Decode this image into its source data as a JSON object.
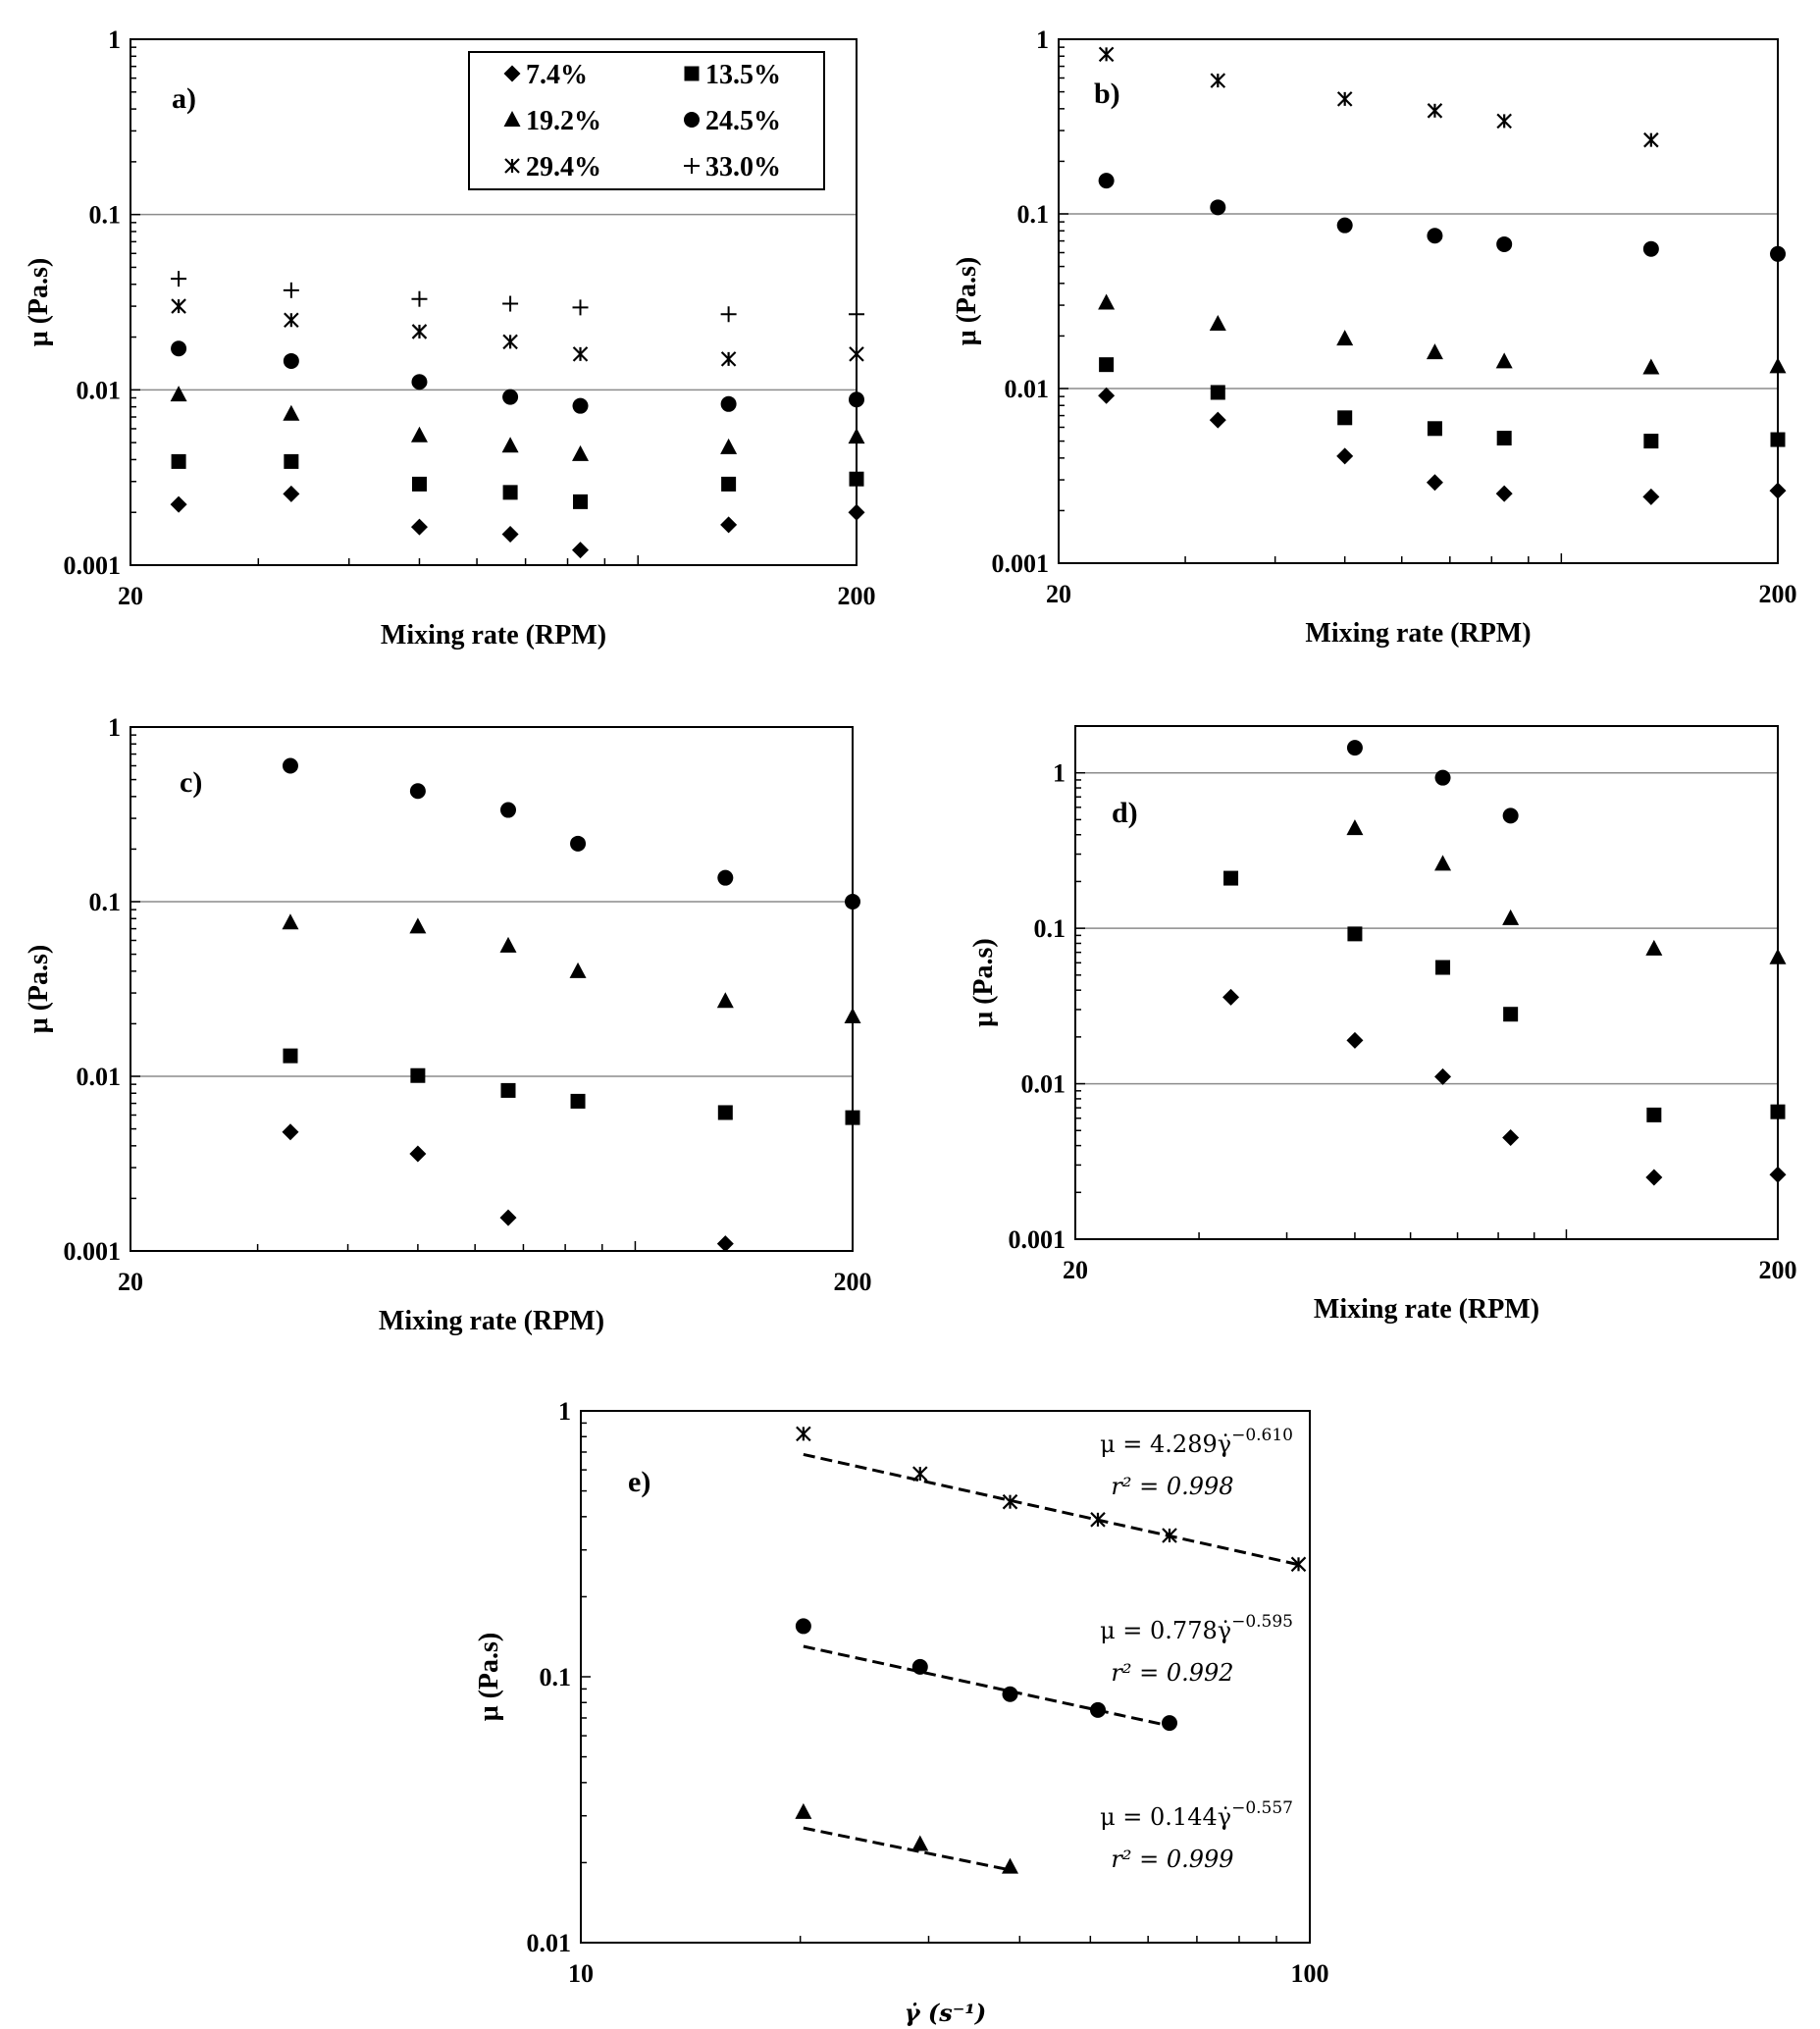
{
  "legend": [
    {
      "marker": "diamond",
      "label": "7.4%"
    },
    {
      "marker": "square",
      "label": "13.5%"
    },
    {
      "marker": "triangle",
      "label": "19.2%"
    },
    {
      "marker": "circle",
      "label": "24.5%"
    },
    {
      "marker": "star",
      "label": "29.4%"
    },
    {
      "marker": "plus",
      "label": "33.0%"
    }
  ],
  "chart_data": [
    {
      "id": "a",
      "type": "scatter",
      "panel_label": "a)",
      "xlabel": "Mixing rate (RPM)",
      "ylabel": "μ (Pa.s)",
      "xscale": "log",
      "yscale": "log",
      "xlim": [
        20,
        200
      ],
      "ylim": [
        0.001,
        1
      ],
      "xticks": [
        "20",
        "200"
      ],
      "yticks": [
        "0.001",
        "0.01",
        "0.1",
        "1"
      ],
      "grid": "horizontal major",
      "legend_position": "top-right",
      "x": [
        23.3,
        33.3,
        50,
        66.7,
        83.3,
        133.3,
        200
      ],
      "series": [
        {
          "name": "7.4%",
          "marker": "diamond",
          "values": [
            0.00222,
            0.00255,
            0.00165,
            0.0015,
            0.00122,
            0.0017,
            0.002
          ]
        },
        {
          "name": "13.5%",
          "marker": "square",
          "values": [
            0.0039,
            0.0039,
            0.0029,
            0.0026,
            0.0023,
            0.0029,
            0.0031
          ]
        },
        {
          "name": "19.2%",
          "marker": "triangle",
          "values": [
            0.0094,
            0.0073,
            0.0055,
            0.0048,
            0.0043,
            0.0047,
            0.0054
          ]
        },
        {
          "name": "24.5%",
          "marker": "circle",
          "values": [
            0.0172,
            0.0146,
            0.0111,
            0.0091,
            0.0081,
            0.0083,
            0.0088
          ]
        },
        {
          "name": "29.4%",
          "marker": "star",
          "values": [
            0.03,
            0.025,
            0.0215,
            0.0188,
            0.016,
            0.015,
            0.016
          ]
        },
        {
          "name": "33.0%",
          "marker": "plus",
          "values": [
            0.043,
            0.037,
            0.033,
            0.031,
            0.0295,
            0.027,
            0.027
          ]
        }
      ]
    },
    {
      "id": "b",
      "type": "scatter",
      "panel_label": "b)",
      "xlabel": "Mixing rate (RPM)",
      "ylabel": "μ (Pa.s)",
      "xscale": "log",
      "yscale": "log",
      "xlim": [
        20,
        200
      ],
      "ylim": [
        0.001,
        1
      ],
      "xticks": [
        "20",
        "200"
      ],
      "yticks": [
        "0.001",
        "0.01",
        "0.1",
        "1"
      ],
      "grid": "horizontal major",
      "x": [
        23.3,
        33.3,
        50,
        66.7,
        83.3,
        133.3,
        200
      ],
      "series": [
        {
          "name": "7.4%",
          "marker": "diamond",
          "values": [
            0.0091,
            0.0066,
            0.0041,
            0.0029,
            0.0025,
            0.0024,
            0.0026
          ]
        },
        {
          "name": "13.5%",
          "marker": "square",
          "values": [
            0.0137,
            0.0095,
            0.0068,
            0.0059,
            0.0052,
            0.005,
            0.0051
          ]
        },
        {
          "name": "19.2%",
          "marker": "triangle",
          "values": [
            0.031,
            0.0235,
            0.0193,
            0.0161,
            0.0143,
            0.0132,
            0.0134
          ]
        },
        {
          "name": "24.5%",
          "marker": "circle",
          "values": [
            0.155,
            0.109,
            0.086,
            0.075,
            0.067,
            0.063,
            0.059
          ]
        },
        {
          "name": "29.4%",
          "marker": "star",
          "values": [
            0.82,
            0.58,
            0.455,
            0.39,
            0.34,
            0.265,
            null
          ]
        }
      ]
    },
    {
      "id": "c",
      "type": "scatter",
      "panel_label": "c)",
      "xlabel": "Mixing rate (RPM)",
      "ylabel": "μ (Pa.s)",
      "xscale": "log",
      "yscale": "log",
      "xlim": [
        20,
        200
      ],
      "ylim": [
        0.001,
        1
      ],
      "xticks": [
        "20",
        "200"
      ],
      "yticks": [
        "0.001",
        "0.01",
        "0.1",
        "1"
      ],
      "grid": "horizontal major",
      "x": [
        33.3,
        50,
        66.7,
        83.3,
        133.3,
        200
      ],
      "series": [
        {
          "name": "7.4%",
          "marker": "diamond",
          "values": [
            0.0048,
            0.0036,
            0.00155,
            null,
            0.0011,
            null
          ]
        },
        {
          "name": "13.5%",
          "marker": "square",
          "values": [
            0.0131,
            0.0101,
            0.0083,
            0.0072,
            0.0062,
            0.0058
          ]
        },
        {
          "name": "19.2%",
          "marker": "triangle",
          "values": [
            0.076,
            0.072,
            0.056,
            0.04,
            0.027,
            0.022
          ]
        },
        {
          "name": "24.5%",
          "marker": "circle",
          "values": [
            0.6,
            0.43,
            0.335,
            0.215,
            0.137,
            0.1
          ]
        }
      ]
    },
    {
      "id": "d",
      "type": "scatter",
      "panel_label": "d)",
      "xlabel": "Mixing rate (RPM)",
      "ylabel": "μ (Pa.s)",
      "xscale": "log",
      "yscale": "log",
      "xlim": [
        20,
        200
      ],
      "ylim": [
        0.001,
        2
      ],
      "xticks": [
        "20",
        "200"
      ],
      "yticks": [
        "0.001",
        "0.01",
        "0.1",
        "1"
      ],
      "grid": "horizontal major",
      "x": [
        33.3,
        50,
        66.7,
        83.3,
        133.3,
        200
      ],
      "series": [
        {
          "name": "7.4%",
          "marker": "diamond",
          "values": [
            0.036,
            0.019,
            0.0111,
            0.0045,
            0.0025,
            0.0026
          ]
        },
        {
          "name": "13.5%",
          "marker": "square",
          "values": [
            0.21,
            0.092,
            0.056,
            0.028,
            0.0063,
            0.0066
          ]
        },
        {
          "name": "19.2%",
          "marker": "triangle",
          "values": [
            null,
            0.44,
            0.26,
            0.116,
            0.074,
            0.065
          ]
        },
        {
          "name": "24.5%",
          "marker": "circle",
          "values": [
            null,
            1.45,
            0.93,
            0.53,
            null,
            null
          ]
        }
      ]
    },
    {
      "id": "e",
      "type": "scatter",
      "panel_label": "e)",
      "xlabel": "γ̇ (s⁻¹)",
      "ylabel": "μ (Pa.s)",
      "xscale": "log",
      "yscale": "log",
      "xlim": [
        10,
        100
      ],
      "ylim": [
        0.01,
        1
      ],
      "xticks": [
        "10",
        "100"
      ],
      "yticks": [
        "0.01",
        "0.1",
        "1"
      ],
      "grid": "none",
      "series": [
        {
          "name": "29.4%",
          "marker": "star",
          "x": [
            20.2,
            29.2,
            38.8,
            51.2,
            64.2,
            96.5
          ],
          "values": [
            0.82,
            0.58,
            0.455,
            0.39,
            0.34,
            0.265
          ],
          "fit": {
            "a": 4.289,
            "b": -0.61,
            "equation": "μ = 4.289γ̇",
            "exponent": "−0.610",
            "r2": "r² = 0.998"
          }
        },
        {
          "name": "24.5%",
          "marker": "circle",
          "x": [
            20.2,
            29.2,
            38.8,
            51.2,
            64.2
          ],
          "values": [
            0.155,
            0.109,
            0.086,
            0.075,
            0.067
          ],
          "fit": {
            "a": 0.778,
            "b": -0.595,
            "equation": "μ = 0.778γ̇",
            "exponent": "−0.595",
            "r2": "r² = 0.992"
          }
        },
        {
          "name": "19.2%",
          "marker": "triangle",
          "x": [
            20.2,
            29.2,
            38.8
          ],
          "values": [
            0.031,
            0.0235,
            0.0193
          ],
          "fit": {
            "a": 0.144,
            "b": -0.557,
            "equation": "μ = 0.144γ̇",
            "exponent": "−0.557",
            "r2": "r² = 0.999"
          }
        }
      ]
    }
  ]
}
